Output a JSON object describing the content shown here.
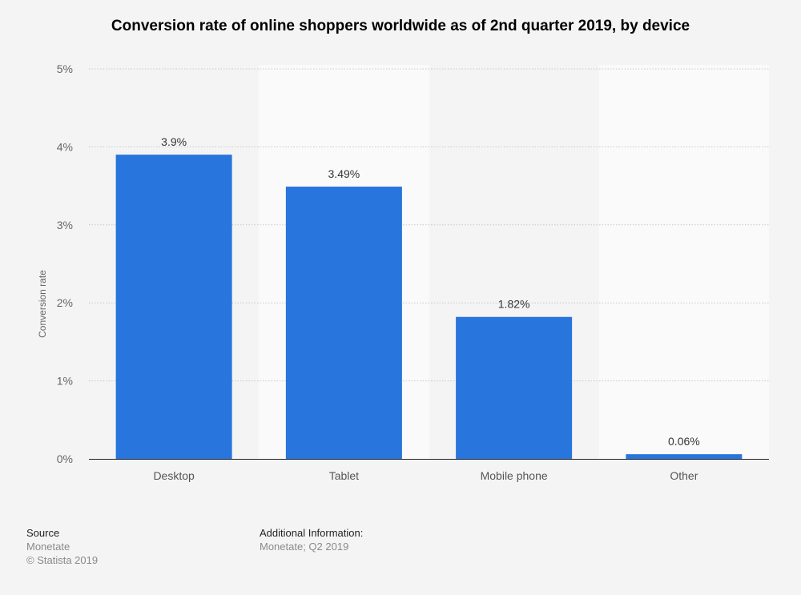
{
  "chart_data": {
    "type": "bar",
    "title": "Conversion rate of online shoppers worldwide as of 2nd quarter 2019, by device",
    "categories": [
      "Desktop",
      "Tablet",
      "Mobile phone",
      "Other"
    ],
    "values": [
      3.9,
      3.49,
      1.82,
      0.06
    ],
    "data_labels": [
      "3.9%",
      "3.49%",
      "1.82%",
      "0.06%"
    ],
    "xlabel": "",
    "ylabel": "Conversion rate",
    "ylim": [
      0,
      5
    ],
    "yticks": [
      "0%",
      "1%",
      "2%",
      "3%",
      "4%",
      "5%"
    ],
    "grid": true,
    "bar_color": "#2775dd"
  },
  "footer": {
    "source_label": "Source",
    "source": "Monetate",
    "copyright": "© Statista 2019",
    "additional_label": "Additional Information:",
    "additional": "Monetate; Q2 2019"
  }
}
